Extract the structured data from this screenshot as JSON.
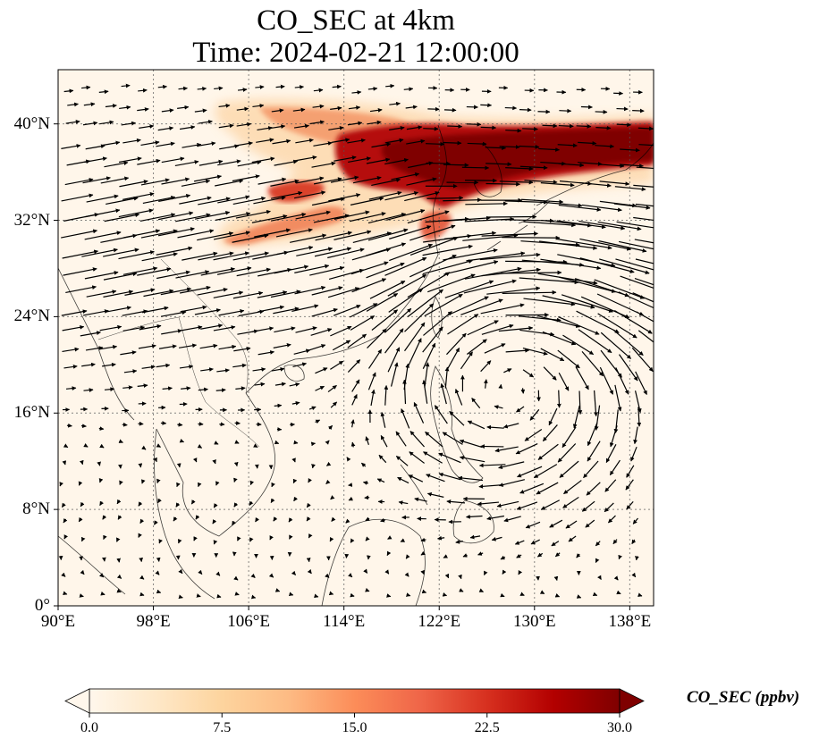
{
  "title_line1": "CO_SEC at 4km",
  "title_line2": "Time: 2024-02-21 12:00:00",
  "map": {
    "lon_range": [
      90,
      140
    ],
    "lat_range": [
      0,
      44.5
    ],
    "lat_ticks": [
      {
        "value": 0,
        "label": "0°"
      },
      {
        "value": 8,
        "label": "8°N"
      },
      {
        "value": 16,
        "label": "16°N"
      },
      {
        "value": 24,
        "label": "24°N"
      },
      {
        "value": 32,
        "label": "32°N"
      },
      {
        "value": 40,
        "label": "40°N"
      }
    ],
    "lon_ticks": [
      {
        "value": 90,
        "label": "90°E"
      },
      {
        "value": 98,
        "label": "98°E"
      },
      {
        "value": 106,
        "label": "106°E"
      },
      {
        "value": 114,
        "label": "114°E"
      },
      {
        "value": 122,
        "label": "122°E"
      },
      {
        "value": 130,
        "label": "130°E"
      },
      {
        "value": 138,
        "label": "138°E"
      }
    ],
    "gridlines": true,
    "field": "CO_SEC",
    "overlay": "wind vectors"
  },
  "colorbar": {
    "label": "CO_SEC (ppbv)",
    "min": 0,
    "max": 30,
    "extend": "both",
    "colormap": "OrRd",
    "colors": [
      "#fff7ec",
      "#fee8c8",
      "#fdd49e",
      "#fdbb84",
      "#fc8d59",
      "#ef6548",
      "#d7301f",
      "#b30000",
      "#7f0000"
    ],
    "ticks": [
      "0.0",
      "7.5",
      "15.0",
      "22.5",
      "30.0"
    ]
  }
}
